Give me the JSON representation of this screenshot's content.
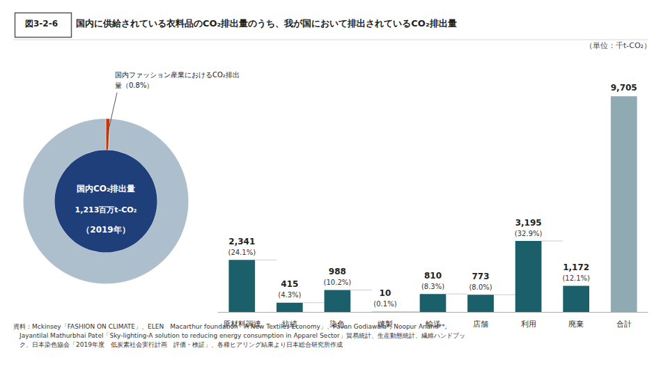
{
  "chart_data": [
    {
      "type": "pie",
      "values": [
        0.8,
        99.2
      ],
      "colors": [
        "#cc3300",
        "#adbfcc"
      ],
      "center_color": "#1e3f7a",
      "center_text": [
        "国内CO₂排出量",
        "1,213百万t-CO₂",
        "（2019年）"
      ],
      "annotation": [
        "国内ファッション産業におけるCO₂排出",
        "量（0.8%）"
      ]
    },
    {
      "type": "bar",
      "figure_label": "図3-2-6",
      "title": "国内に供給されている衣料品のCO₂排出量のうち、我が国において排出されているCO₂排出量",
      "unit_label": "（単位：千t-CO₂）",
      "categories": [
        "原材料調達",
        "紡績",
        "染色",
        "縫製",
        "輸送",
        "店舗",
        "利用",
        "廃棄",
        "合計"
      ],
      "values": [
        2341,
        415,
        988,
        10,
        810,
        773,
        3195,
        1172,
        9705
      ],
      "value_labels": [
        "2,341",
        "415",
        "988",
        "10",
        "810",
        "773",
        "3,195",
        "1,172",
        "9,705"
      ],
      "percentages": [
        "(24.1%)",
        "(4.3%)",
        "(10.2%)",
        "(0.1%)",
        "(8.3%)",
        "(8.0%)",
        "(32.9%)",
        "(12.1%)",
        null
      ],
      "colors": [
        "#1a5f6a",
        "#1a5f6a",
        "#1a5f6a",
        "#1a5f6a",
        "#1a5f6a",
        "#1a5f6a",
        "#1a5f6a",
        "#1a5f6a",
        "#8faab3"
      ],
      "connector_color": "#cccccc",
      "ylim": [
        0,
        11500
      ],
      "data_labels": true,
      "tick_labels": "x",
      "grid": false,
      "source": [
        "資料：Mckinsey「FASHION ON CLIMATE」、ELEN　Macarthur foundation「A New Textiles Economy」、Pavan Godiawala*, Noopur Anand**,",
        "　Jayantilal Mathurbhai Patel「Sky-lighting-A solution to reducing energy consumption in Apparel Sector」貿易統計、生産動態統計、繊維ハンドブッ",
        "　ク、日本染色協会「2019年度　低炭素社会実行計画　評価・検証」、各種ヒアリング結果より日本総合研究所作成"
      ]
    }
  ]
}
